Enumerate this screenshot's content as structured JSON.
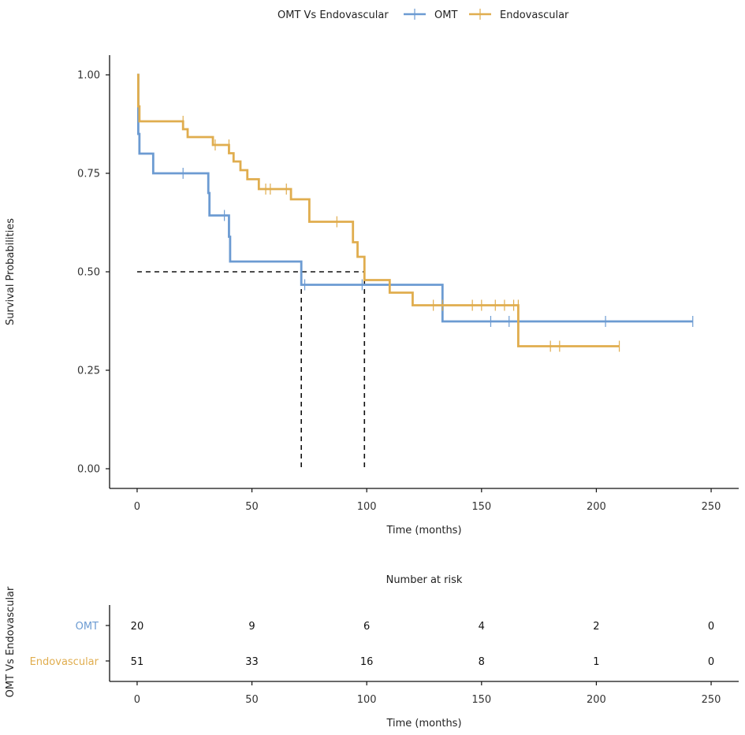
{
  "legend": {
    "title": "OMT Vs Endovascular",
    "items": [
      {
        "label": "OMT",
        "color": "#6C9BD2"
      },
      {
        "label": "Endovascular",
        "color": "#E0AD4E"
      }
    ]
  },
  "chart_data": {
    "type": "line",
    "subtype": "kaplan-meier-step",
    "title": "",
    "xlabel": "Time (months)",
    "ylabel": "Survival Probabilities",
    "xlim": [
      -12,
      262
    ],
    "ylim": [
      -0.05,
      1.05
    ],
    "x_ticks": [
      0,
      50,
      100,
      150,
      200,
      250
    ],
    "y_ticks": [
      0.0,
      0.25,
      0.5,
      0.75,
      1.0
    ],
    "y_tick_labels": [
      "0.00",
      "0.25",
      "0.50",
      "0.75",
      "1.00"
    ],
    "grid": false,
    "series": [
      {
        "name": "OMT",
        "color": "#6C9BD2",
        "steps": [
          [
            0,
            1.0
          ],
          [
            0.5,
            0.85
          ],
          [
            1,
            0.8
          ],
          [
            7,
            0.75
          ],
          [
            31,
            0.7
          ],
          [
            31.5,
            0.643
          ],
          [
            40,
            0.589
          ],
          [
            40.5,
            0.526
          ],
          [
            71.5,
            0.467
          ],
          [
            133,
            0.374
          ],
          [
            242,
            0.374
          ]
        ],
        "censored": [
          [
            20,
            0.75
          ],
          [
            38,
            0.643
          ],
          [
            73,
            0.467
          ],
          [
            98,
            0.467
          ],
          [
            154,
            0.374
          ],
          [
            162,
            0.374
          ],
          [
            204,
            0.374
          ],
          [
            242,
            0.374
          ]
        ]
      },
      {
        "name": "Endovascular",
        "color": "#E0AD4E",
        "steps": [
          [
            0,
            1.0
          ],
          [
            0.5,
            0.92
          ],
          [
            1,
            0.882
          ],
          [
            20,
            0.862
          ],
          [
            22,
            0.842
          ],
          [
            33,
            0.822
          ],
          [
            40,
            0.801
          ],
          [
            42,
            0.78
          ],
          [
            45,
            0.758
          ],
          [
            48,
            0.735
          ],
          [
            53,
            0.71
          ],
          [
            67,
            0.684
          ],
          [
            75,
            0.627
          ],
          [
            94,
            0.575
          ],
          [
            96,
            0.538
          ],
          [
            99,
            0.479
          ],
          [
            110,
            0.447
          ],
          [
            120,
            0.415
          ],
          [
            166,
            0.311
          ],
          [
            210,
            0.311
          ]
        ],
        "censored": [
          [
            20,
            0.882
          ],
          [
            34,
            0.822
          ],
          [
            40,
            0.822
          ],
          [
            56,
            0.71
          ],
          [
            58,
            0.71
          ],
          [
            65,
            0.71
          ],
          [
            87,
            0.627
          ],
          [
            129,
            0.415
          ],
          [
            133,
            0.415
          ],
          [
            146,
            0.415
          ],
          [
            150,
            0.415
          ],
          [
            156,
            0.415
          ],
          [
            160,
            0.415
          ],
          [
            164,
            0.415
          ],
          [
            166,
            0.415
          ],
          [
            180,
            0.311
          ],
          [
            184,
            0.311
          ],
          [
            210,
            0.311
          ]
        ]
      }
    ],
    "median_lines": [
      {
        "x": 71.5,
        "y": 0.5
      },
      {
        "x": 99,
        "y": 0.5
      }
    ]
  },
  "risk_table": {
    "title": "Number at risk",
    "ylabel": "OMT Vs Endovascular",
    "xlabel": "Time (months)",
    "time_points": [
      0,
      50,
      100,
      150,
      200,
      250
    ],
    "rows": [
      {
        "label": "OMT",
        "color": "#6C9BD2",
        "values": [
          "20",
          "9",
          "6",
          "4",
          "2",
          "0"
        ]
      },
      {
        "label": "Endovascular",
        "color": "#E0AD4E",
        "values": [
          "51",
          "33",
          "16",
          "8",
          "1",
          "0"
        ]
      }
    ]
  }
}
